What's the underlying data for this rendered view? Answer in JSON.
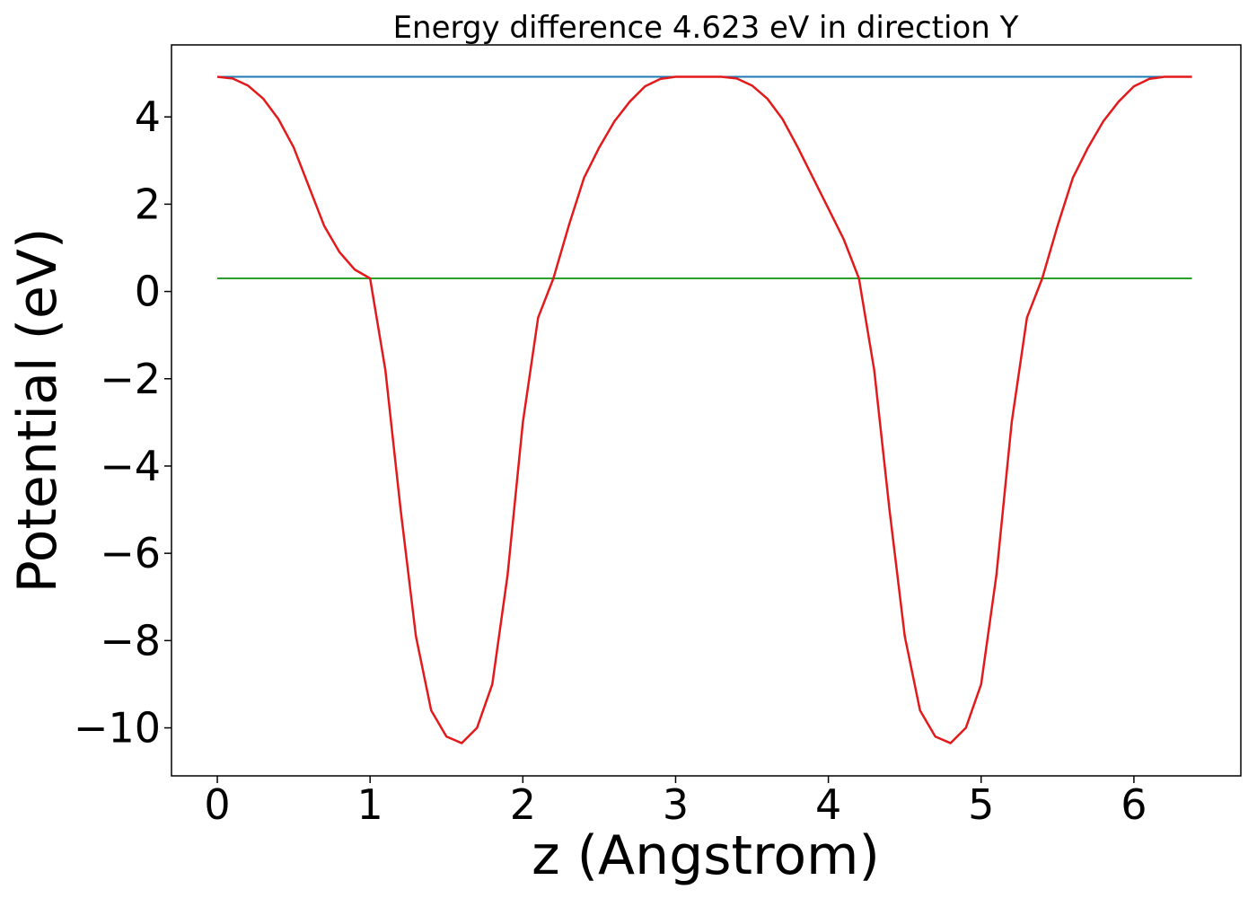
{
  "chart_data": {
    "type": "line",
    "title": "Energy difference 4.623 eV in direction Y",
    "xlabel": "z (Angstrom)",
    "ylabel": "Potential (eV)",
    "xlim": [
      -0.3,
      6.7
    ],
    "ylim": [
      -11.1,
      5.65
    ],
    "x_ticks": [
      0,
      1,
      2,
      3,
      4,
      5,
      6
    ],
    "x_tick_labels": [
      "0",
      "1",
      "2",
      "3",
      "4",
      "5",
      "6"
    ],
    "y_ticks": [
      4,
      2,
      0,
      -2,
      -4,
      -6,
      -8,
      -10
    ],
    "y_tick_labels": [
      "4",
      "2",
      "0",
      "−2",
      "−4",
      "−6",
      "−8",
      "−10"
    ],
    "grid": false,
    "series": [
      {
        "color": "#1f77b4",
        "x": [
          0,
          6.38
        ],
        "y": [
          4.92,
          4.92
        ]
      },
      {
        "color": "#2ca02c",
        "x": [
          0,
          6.38
        ],
        "y": [
          0.3,
          0.3
        ]
      },
      {
        "color": "#e31a1c",
        "x": [
          0,
          0.1,
          0.2,
          0.3,
          0.4,
          0.5,
          0.6,
          0.7,
          0.8,
          0.9,
          1.0,
          1.1,
          1.2,
          1.3,
          1.4,
          1.5,
          1.6,
          1.7,
          1.8,
          1.9,
          2.0,
          2.1,
          2.2,
          2.3,
          2.4,
          2.5,
          2.6,
          2.7,
          2.8,
          2.9,
          3.0,
          3.1,
          3.2,
          3.3,
          3.4,
          3.5,
          3.6,
          3.7,
          3.8,
          3.9,
          4.0,
          4.1,
          4.2,
          4.3,
          4.4,
          4.5,
          4.6,
          4.7,
          4.8,
          4.9,
          5.0,
          5.1,
          5.2,
          5.3,
          5.4,
          5.5,
          5.6,
          5.7,
          5.8,
          5.9,
          6.0,
          6.1,
          6.2,
          6.3,
          6.38
        ],
        "y": [
          4.92,
          4.88,
          4.72,
          4.42,
          3.95,
          3.3,
          2.4,
          1.5,
          0.9,
          0.5,
          0.3,
          -1.8,
          -5.0,
          -7.9,
          -9.6,
          -10.2,
          -10.35,
          -10.0,
          -9.0,
          -6.5,
          -3.0,
          -0.6,
          0.3,
          1.5,
          2.6,
          3.3,
          3.9,
          4.35,
          4.7,
          4.87,
          4.92,
          4.92,
          4.92,
          4.92,
          4.88,
          4.72,
          4.42,
          3.95,
          3.3,
          2.6,
          1.9,
          1.2,
          0.3,
          -1.8,
          -5.0,
          -7.9,
          -9.6,
          -10.2,
          -10.35,
          -10.0,
          -9.0,
          -6.5,
          -3.0,
          -0.6,
          0.3,
          1.5,
          2.6,
          3.3,
          3.9,
          4.35,
          4.7,
          4.87,
          4.92,
          4.92,
          4.92
        ]
      }
    ]
  }
}
